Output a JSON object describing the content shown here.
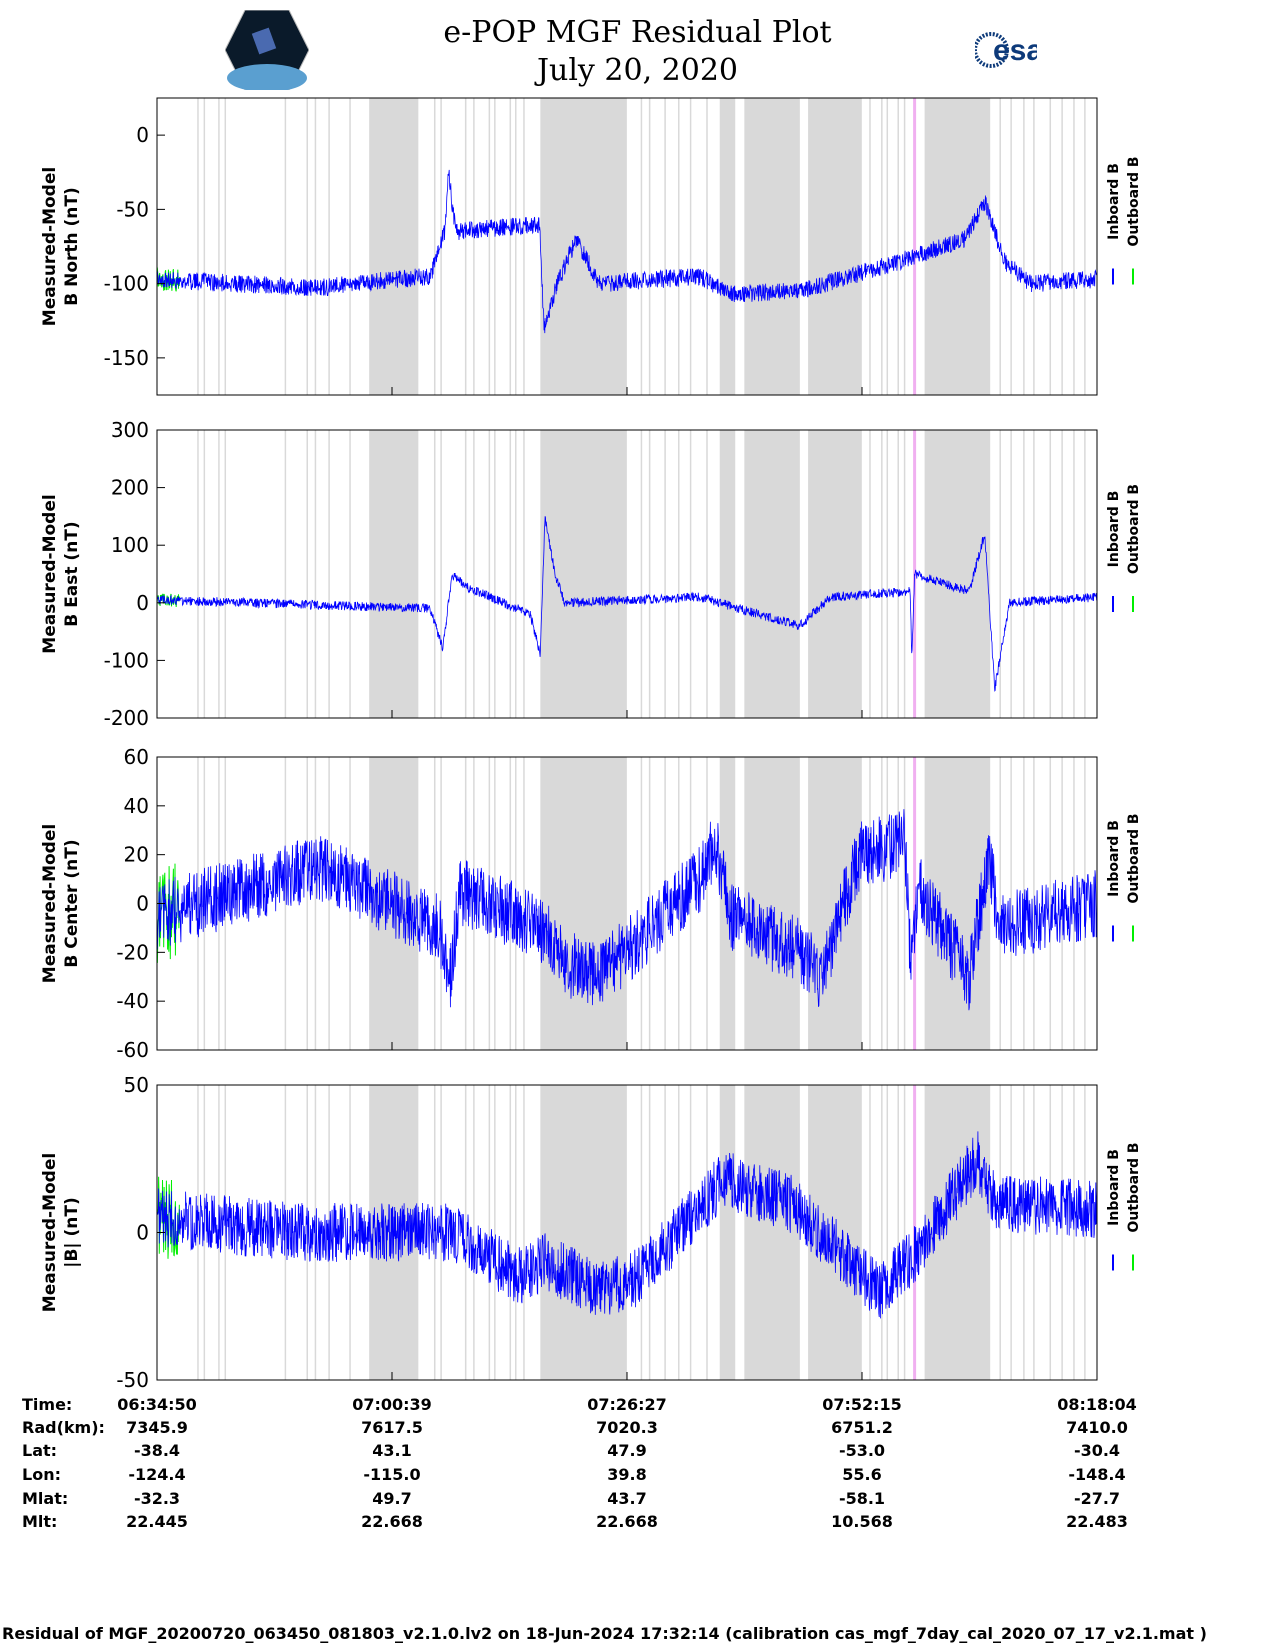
{
  "header": {
    "title": "e-POP MGF Residual Plot",
    "date": "July 20, 2020",
    "logo_left": "CASSIOPE",
    "logo_right": "esa"
  },
  "chart_data": [
    {
      "type": "line",
      "ylabel": [
        "Measured-Model",
        "B North (nT)"
      ],
      "ylim": [
        -175,
        25
      ],
      "yticks": [
        0,
        -50,
        -100,
        -150
      ],
      "noise": 6,
      "inboard": [
        [
          0,
          -97
        ],
        [
          17.9,
          -103
        ],
        [
          21,
          -100
        ],
        [
          30,
          -95
        ],
        [
          31.6,
          -65
        ],
        [
          32,
          -25
        ],
        [
          32.8,
          -65
        ],
        [
          42,
          -60
        ],
        [
          42.5,
          -130
        ],
        [
          44,
          -100
        ],
        [
          46,
          -70
        ],
        [
          48.6,
          -100
        ],
        [
          59.6,
          -95
        ],
        [
          62.9,
          -107
        ],
        [
          70.6,
          -105
        ],
        [
          81.6,
          -85
        ],
        [
          88.7,
          -70
        ],
        [
          90.9,
          -45
        ],
        [
          93.1,
          -85
        ],
        [
          95.9,
          -100
        ],
        [
          103.2,
          -97
        ]
      ]
    },
    {
      "type": "line",
      "ylabel": [
        "Measured-Model",
        "B East (nT)"
      ],
      "ylim": [
        -200,
        300
      ],
      "yticks": [
        300,
        200,
        100,
        0,
        -100,
        -200
      ],
      "noise": 8,
      "inboard": [
        [
          0,
          5
        ],
        [
          30,
          -10
        ],
        [
          31.4,
          -80
        ],
        [
          32.4,
          50
        ],
        [
          34.3,
          25
        ],
        [
          41,
          -20
        ],
        [
          42.1,
          -90
        ],
        [
          42.6,
          150
        ],
        [
          43.7,
          50
        ],
        [
          44.8,
          0
        ],
        [
          59.6,
          10
        ],
        [
          70.6,
          -40
        ],
        [
          73.9,
          10
        ],
        [
          82.7,
          20
        ],
        [
          82.9,
          -100
        ],
        [
          83.2,
          50
        ],
        [
          89.2,
          20
        ],
        [
          90.9,
          120
        ],
        [
          92,
          -150
        ],
        [
          93.6,
          0
        ],
        [
          103.2,
          10
        ]
      ]
    },
    {
      "type": "line",
      "ylabel": [
        "Measured-Model",
        "B Center (nT)"
      ],
      "ylim": [
        -60,
        60
      ],
      "yticks": [
        60,
        40,
        20,
        0,
        -20,
        -40,
        -60
      ],
      "noise": 14,
      "inboard": [
        [
          0,
          -5
        ],
        [
          17.9,
          15
        ],
        [
          31,
          -10
        ],
        [
          32.2,
          -30
        ],
        [
          33.3,
          5
        ],
        [
          42.1,
          -10
        ],
        [
          45.4,
          -25
        ],
        [
          48.6,
          -30
        ],
        [
          59.6,
          10
        ],
        [
          61.3,
          25
        ],
        [
          62.9,
          -5
        ],
        [
          70.6,
          -20
        ],
        [
          72.8,
          -30
        ],
        [
          77.2,
          20
        ],
        [
          82.1,
          25
        ],
        [
          82.7,
          -20
        ],
        [
          83.8,
          5
        ],
        [
          89.2,
          -30
        ],
        [
          91.4,
          20
        ],
        [
          92.5,
          -10
        ],
        [
          103.2,
          0
        ]
      ]
    },
    {
      "type": "line",
      "ylabel": [
        "Measured-Model",
        "|B| (nT)"
      ],
      "ylim": [
        -50,
        50
      ],
      "yticks": [
        50,
        0,
        -50
      ],
      "noise": 10,
      "inboard": [
        [
          0,
          5
        ],
        [
          15.7,
          0
        ],
        [
          32.2,
          0
        ],
        [
          39.9,
          -15
        ],
        [
          42.6,
          -10
        ],
        [
          48.6,
          -20
        ],
        [
          53,
          -15
        ],
        [
          62.3,
          18
        ],
        [
          69.5,
          10
        ],
        [
          79.4,
          -20
        ],
        [
          83.8,
          -5
        ],
        [
          90.1,
          25
        ],
        [
          92,
          10
        ],
        [
          103.2,
          8
        ]
      ]
    }
  ],
  "x_minutes_span": 103.23,
  "outboard_until_minute": 2.5,
  "gap_bands": [
    [
      23.3,
      28.7
    ],
    [
      42.1,
      51.6
    ],
    [
      61.8,
      63.5
    ],
    [
      64.5,
      70.6
    ],
    [
      71.5,
      77.4
    ],
    [
      84.3,
      91.5
    ]
  ],
  "gap_lines": [
    4.5,
    5.2,
    6.8,
    7.5,
    14.1,
    16.5,
    17.4,
    18.9,
    21.2,
    30.5,
    31.2,
    33.9,
    34.8,
    36.5,
    37.1,
    38.8,
    39.4,
    40.3,
    53.2,
    54.1,
    55.8,
    57.3,
    58.6,
    60.4,
    72.3,
    78.3,
    79.6,
    80.2,
    81.4,
    82.1,
    92.6,
    93.8,
    95.2,
    96.3,
    98.1,
    99.4,
    100.7,
    101.9
  ],
  "pink_line": 83.2,
  "legend": {
    "inboard": "Inboard B",
    "outboard": "Outboard B"
  },
  "colors": {
    "inboard": "#0000ff",
    "outboard": "#00ee00",
    "gap": "#d9d9d9",
    "pink": "#f0b0f0"
  },
  "info_table": {
    "labels": [
      "Time:",
      "Rad(km):",
      "Lat:",
      "Lon:",
      "Mlat:",
      "Mlt:"
    ],
    "columns": [
      [
        "06:34:50",
        "7345.9",
        "-38.4",
        "-124.4",
        "-32.3",
        "22.445"
      ],
      [
        "07:00:39",
        "7617.5",
        "43.1",
        "-115.0",
        "49.7",
        "22.668"
      ],
      [
        "07:26:27",
        "7020.3",
        "47.9",
        "39.8",
        "43.7",
        "22.668"
      ],
      [
        "07:52:15",
        "6751.2",
        "-53.0",
        "55.6",
        "-58.1",
        "10.568"
      ],
      [
        "08:18:04",
        "7410.0",
        "-30.4",
        "-148.4",
        "-27.7",
        "22.483"
      ]
    ]
  },
  "footer": "Residual of MGF_20200720_063450_081803_v2.1.0.lv2 on 18-Jun-2024 17:32:14 (calibration cas_mgf_7day_cal_2020_07_17_v2.1.mat )"
}
